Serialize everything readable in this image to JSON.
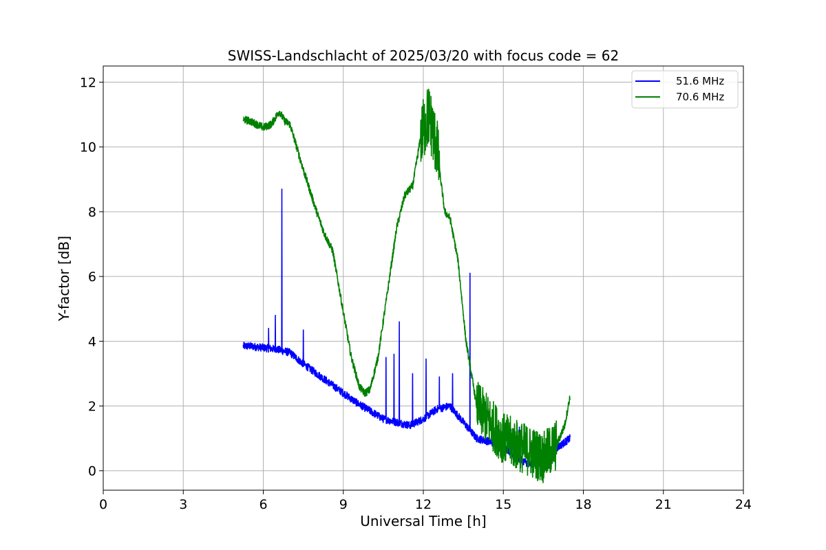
{
  "chart_data": {
    "type": "line",
    "title": "SWISS-Landschlacht of 2025/03/20 with focus code = 62",
    "xlabel": "Universal Time [h]",
    "ylabel": "Y-factor [dB]",
    "xlim": [
      0,
      24
    ],
    "ylim": [
      -0.6,
      12.5
    ],
    "xticks": [
      0,
      3,
      6,
      9,
      12,
      15,
      18,
      21,
      24
    ],
    "yticks": [
      0,
      2,
      4,
      6,
      8,
      10,
      12
    ],
    "grid": true,
    "legend_position": "upper right",
    "series": [
      {
        "name": "51.6 MHz",
        "color": "#0000ff",
        "x": [
          5.25,
          5.5,
          6.0,
          6.5,
          7.0,
          7.5,
          8.0,
          8.5,
          9.0,
          9.5,
          10.0,
          10.5,
          11.0,
          11.5,
          12.0,
          12.5,
          13.0,
          13.5,
          14.0,
          14.5,
          15.0,
          15.5,
          16.0,
          16.5,
          17.0,
          17.5
        ],
        "values": [
          3.85,
          3.85,
          3.8,
          3.75,
          3.65,
          3.3,
          3.0,
          2.7,
          2.4,
          2.1,
          1.85,
          1.6,
          1.5,
          1.4,
          1.6,
          1.9,
          2.0,
          1.5,
          1.0,
          0.9,
          0.75,
          0.4,
          0.2,
          0.4,
          0.7,
          1.0
        ],
        "spikes": [
          {
            "x": 6.2,
            "y": 4.4
          },
          {
            "x": 6.45,
            "y": 4.8
          },
          {
            "x": 6.7,
            "y": 8.7
          },
          {
            "x": 7.5,
            "y": 4.35
          },
          {
            "x": 10.6,
            "y": 3.5
          },
          {
            "x": 10.9,
            "y": 3.6
          },
          {
            "x": 11.1,
            "y": 4.6
          },
          {
            "x": 11.6,
            "y": 3.0
          },
          {
            "x": 12.1,
            "y": 3.45
          },
          {
            "x": 12.6,
            "y": 2.9
          },
          {
            "x": 13.1,
            "y": 3.0
          },
          {
            "x": 13.75,
            "y": 6.1
          },
          {
            "x": 15.6,
            "y": 1.35
          }
        ]
      },
      {
        "name": "70.6 MHz",
        "color": "#008000",
        "x": [
          5.25,
          5.5,
          6.0,
          6.3,
          6.6,
          6.8,
          7.0,
          7.5,
          8.0,
          8.3,
          8.6,
          9.0,
          9.3,
          9.6,
          9.8,
          10.0,
          10.3,
          10.6,
          11.0,
          11.3,
          11.6,
          11.9,
          12.2,
          12.5,
          12.8,
          13.0,
          13.3,
          13.6,
          13.8,
          14.0,
          14.5,
          15.0,
          15.5,
          16.0,
          16.5,
          17.0,
          17.3,
          17.5
        ],
        "values": [
          10.85,
          10.8,
          10.6,
          10.7,
          11.1,
          10.8,
          10.7,
          9.3,
          8.0,
          7.3,
          6.8,
          4.9,
          3.5,
          2.6,
          2.4,
          2.5,
          3.5,
          5.2,
          7.5,
          8.5,
          8.8,
          10.3,
          11.0,
          10.0,
          8.0,
          7.8,
          6.5,
          4.0,
          3.0,
          2.0,
          1.5,
          1.0,
          0.8,
          0.6,
          0.4,
          0.8,
          1.4,
          2.3
        ],
        "noise": [
          {
            "x": [
              11.9,
              12.6
            ],
            "amplitude": 1.0
          },
          {
            "x": [
              14.0,
              17.0
            ],
            "amplitude": 0.8
          }
        ]
      }
    ]
  }
}
